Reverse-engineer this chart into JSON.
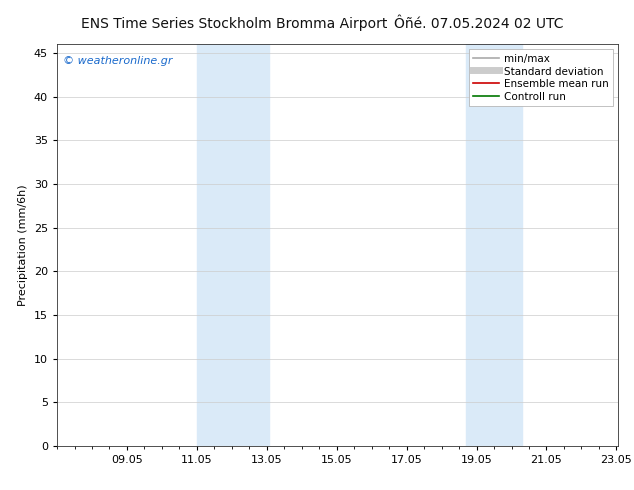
{
  "title_left": "ENS Time Series Stockholm Bromma Airport",
  "title_right": "Ôñé. 07.05.2024 02 UTC",
  "ylabel": "Precipitation (mm/6h)",
  "ylim": [
    0,
    46
  ],
  "yticks": [
    0,
    5,
    10,
    15,
    20,
    25,
    30,
    35,
    40,
    45
  ],
  "xtick_labels": [
    "09.05",
    "11.05",
    "13.05",
    "15.05",
    "17.05",
    "19.05",
    "21.05",
    "23.05"
  ],
  "xtick_positions": [
    9,
    11,
    13,
    15,
    17,
    19,
    21,
    23
  ],
  "background_color": "#ffffff",
  "plot_bg_color": "#ffffff",
  "grid_color": "#cccccc",
  "shaded_bands": [
    {
      "xmin": 11.0,
      "xmax": 13.05
    },
    {
      "xmin": 18.7,
      "xmax": 20.3
    }
  ],
  "shade_color": "#daeaf8",
  "watermark_text": "© weatheronline.gr",
  "watermark_color": "#1a6acc",
  "legend_entries": [
    {
      "label": "min/max",
      "color": "#aaaaaa",
      "lw": 1.2,
      "style": "solid"
    },
    {
      "label": "Standard deviation",
      "color": "#cccccc",
      "lw": 5,
      "style": "solid"
    },
    {
      "label": "Ensemble mean run",
      "color": "#cc0000",
      "lw": 1.2,
      "style": "solid"
    },
    {
      "label": "Controll run",
      "color": "#007700",
      "lw": 1.2,
      "style": "solid"
    }
  ],
  "title_fontsize": 10,
  "axis_label_fontsize": 8,
  "tick_fontsize": 8,
  "watermark_fontsize": 8,
  "legend_fontsize": 7.5,
  "xmin": 7.0,
  "xmax": 23.05
}
